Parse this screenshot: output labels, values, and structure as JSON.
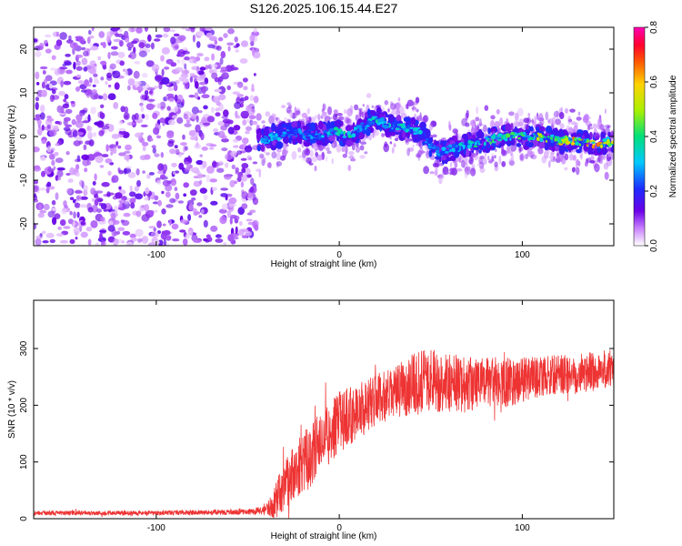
{
  "title": "S126.2025.106.15.44.E27",
  "chart_data": [
    {
      "type": "heatmap",
      "title": "S126.2025.106.15.44.E27",
      "xlabel": "Height of straight line (km)",
      "ylabel": "Frequency (Hz)",
      "xlim": [
        -167,
        150
      ],
      "ylim": [
        -25,
        25
      ],
      "xticks": [
        -100,
        0,
        100
      ],
      "xtick_labels": [
        "-100",
        "0",
        "100"
      ],
      "yticks": [
        -20,
        -10,
        0,
        10,
        20
      ],
      "ytick_labels": [
        "-20",
        "-10",
        "0",
        "10",
        "20"
      ],
      "noise_region_x": [
        -167,
        -45
      ],
      "colorbar": {
        "label": "Normalized spectral amplitude",
        "range": [
          0.0,
          0.8
        ],
        "ticks": [
          0.0,
          0.2,
          0.4,
          0.6,
          0.8
        ],
        "tick_labels": [
          "0.0",
          "0.2",
          "0.4",
          "0.6",
          "0.8"
        ],
        "colormap": "rainbow (white-violet-blue-cyan-green-yellow-red-magenta)"
      },
      "signal_track": {
        "description": "frequency of peak spectral amplitude vs height",
        "x": [
          -45,
          -35,
          -25,
          -15,
          -5,
          0,
          5,
          15,
          20,
          25,
          35,
          45,
          50,
          55,
          60,
          70,
          80,
          90,
          100,
          110,
          120,
          130,
          140,
          150
        ],
        "y": [
          -1,
          0,
          1,
          0,
          1,
          1,
          0,
          3,
          4,
          3,
          2,
          1,
          -2,
          -4,
          -3,
          -2,
          -1,
          0,
          0,
          0,
          -1,
          -1,
          -2,
          -1
        ],
        "amplitude": [
          0.3,
          0.35,
          0.3,
          0.3,
          0.35,
          0.45,
          0.4,
          0.35,
          0.4,
          0.35,
          0.4,
          0.35,
          0.3,
          0.35,
          0.3,
          0.4,
          0.45,
          0.5,
          0.45,
          0.55,
          0.65,
          0.7,
          0.75,
          0.6
        ]
      }
    },
    {
      "type": "line",
      "xlabel": "Height of straight line (km)",
      "ylabel": "SNR (10 * v/v)",
      "xlim": [
        -167,
        150
      ],
      "ylim": [
        0,
        385
      ],
      "xticks": [
        -100,
        0,
        100
      ],
      "xtick_labels": [
        "-100",
        "0",
        "100"
      ],
      "yticks": [
        0,
        100,
        200,
        300
      ],
      "ytick_labels": [
        "0",
        "100",
        "200",
        "300"
      ],
      "color": "#ee3333",
      "series": [
        {
          "envelope": "mean SNR vs height",
          "x": [
            -167,
            -100,
            -50,
            -40,
            -35,
            -30,
            -25,
            -20,
            -15,
            -10,
            -5,
            0,
            10,
            20,
            30,
            40,
            50,
            60,
            70,
            80,
            90,
            100,
            110,
            120,
            130,
            140,
            150
          ],
          "y": [
            10,
            10,
            12,
            15,
            30,
            60,
            80,
            100,
            110,
            140,
            150,
            170,
            190,
            210,
            220,
            240,
            245,
            240,
            235,
            240,
            240,
            245,
            250,
            255,
            255,
            260,
            265
          ],
          "spread": [
            4,
            4,
            5,
            8,
            30,
            45,
            50,
            55,
            55,
            55,
            55,
            55,
            50,
            45,
            45,
            55,
            55,
            55,
            50,
            45,
            45,
            40,
            35,
            35,
            35,
            35,
            35
          ]
        }
      ]
    }
  ]
}
